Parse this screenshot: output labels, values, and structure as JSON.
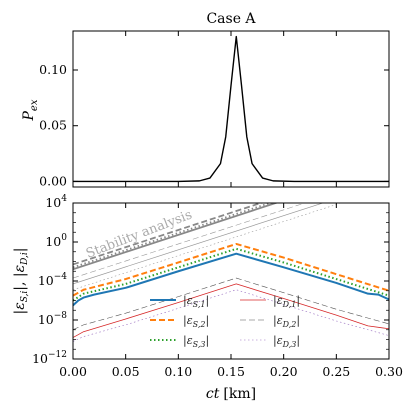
{
  "chart_data": [
    {
      "type": "line",
      "title": "Case A",
      "ylabel": "P_ex",
      "xlim": [
        0.0,
        0.3
      ],
      "ylim": [
        -0.005,
        0.135
      ],
      "yticks": [
        0.0,
        0.05,
        0.1
      ],
      "ytick_labels": [
        "0.00",
        "0.05",
        "0.10"
      ],
      "series": [
        {
          "color": "#000000",
          "x": [
            0.0,
            0.1,
            0.12,
            0.13,
            0.14,
            0.145,
            0.15,
            0.155,
            0.16,
            0.165,
            0.17,
            0.18,
            0.19,
            0.21,
            0.3
          ],
          "values": [
            0.0,
            0.0,
            0.0005,
            0.003,
            0.016,
            0.04,
            0.086,
            0.13,
            0.086,
            0.04,
            0.016,
            0.003,
            0.0005,
            0.0,
            0.0
          ]
        }
      ]
    },
    {
      "type": "line",
      "xlabel": "ct [km]",
      "xlabel_prefix": "ct",
      "xlabel_unit": "[km]",
      "ylabel": "|ε_S,i|, |ε_D,i|",
      "ylabel_left": "|",
      "ylabel_sub1": "S,i",
      "ylabel_mid": "|, |",
      "ylabel_sub2": "D,i",
      "ylabel_right": "|",
      "eps_symbol": "ε",
      "yscale": "log",
      "xlim": [
        0.0,
        0.3
      ],
      "ylim": [
        1e-12,
        10000.0
      ],
      "xticks": [
        0.0,
        0.05,
        0.1,
        0.15,
        0.2,
        0.25,
        0.3
      ],
      "xtick_labels": [
        "0.00",
        "0.05",
        "0.10",
        "0.15",
        "0.20",
        "0.25",
        "0.30"
      ],
      "ytick_exponents": [
        -12,
        -8,
        -4,
        0,
        4
      ],
      "ytick_base": "10",
      "ytick_exp_labels": [
        "−12",
        "−8",
        "−4",
        "0",
        "4"
      ],
      "annotation": "Stability analysis",
      "legend_position": "lower-center",
      "series": [
        {
          "legend": "|ε_S,1|",
          "sub": "S,1",
          "color": "#1f77b4",
          "style": "solid",
          "width": 2.0,
          "x": [
            0.0,
            0.005,
            0.01,
            0.02,
            0.05,
            0.1,
            0.155,
            0.2,
            0.25,
            0.28,
            0.29,
            0.3
          ],
          "log10": [
            -6.5,
            -6.0,
            -5.7,
            -5.4,
            -4.7,
            -3.0,
            -1.2,
            -2.6,
            -4.2,
            -5.3,
            -5.4,
            -5.9
          ]
        },
        {
          "legend": "|ε_S,2|",
          "sub": "S,2",
          "color": "#ff7f0e",
          "style": "dashed",
          "width": 2.0,
          "x": [
            0.0,
            0.01,
            0.05,
            0.1,
            0.155,
            0.2,
            0.25,
            0.3
          ],
          "log10": [
            -5.5,
            -4.9,
            -3.8,
            -2.1,
            -0.2,
            -1.6,
            -3.3,
            -5.0
          ]
        },
        {
          "legend": "|ε_S,3|",
          "sub": "S,3",
          "color": "#2ca02c",
          "style": "dotted",
          "width": 2.0,
          "x": [
            0.0,
            0.01,
            0.05,
            0.1,
            0.155,
            0.2,
            0.25,
            0.3
          ],
          "log10": [
            -6.0,
            -5.3,
            -4.3,
            -2.6,
            -0.7,
            -2.1,
            -3.8,
            -5.5
          ]
        },
        {
          "legend": "|ε_D,1|",
          "sub": "D,1",
          "color": "#d62728",
          "style": "solid",
          "width": 0.8,
          "x": [
            0.0,
            0.01,
            0.05,
            0.1,
            0.155,
            0.2,
            0.25,
            0.28,
            0.3
          ],
          "log10": [
            -9.8,
            -9.2,
            -7.9,
            -6.2,
            -4.3,
            -5.8,
            -7.5,
            -8.6,
            -8.9
          ]
        },
        {
          "legend": "|ε_D,2|",
          "sub": "D,2",
          "color": "#555555",
          "style": "dashed",
          "width": 0.6,
          "x": [
            0.0,
            0.01,
            0.05,
            0.1,
            0.155,
            0.2,
            0.25,
            0.3
          ],
          "log10": [
            -9.0,
            -8.5,
            -7.3,
            -5.6,
            -3.7,
            -5.2,
            -6.9,
            -8.4
          ]
        },
        {
          "legend": "|ε_D,3|",
          "sub": "D,3",
          "color": "#9467bd",
          "style": "dotted",
          "width": 0.6,
          "x": [
            0.0,
            0.01,
            0.05,
            0.1,
            0.155,
            0.2,
            0.25,
            0.3
          ],
          "log10": [
            -10.2,
            -9.7,
            -8.5,
            -6.8,
            -4.9,
            -6.4,
            -8.1,
            -9.6
          ]
        }
      ],
      "stability_lines": [
        {
          "color": "#888888",
          "style": "solid",
          "width": 1.8,
          "x": [
            0.0,
            0.3
          ],
          "log10": [
            -2.8,
            7.8
          ]
        },
        {
          "color": "#888888",
          "style": "dashed",
          "width": 1.8,
          "x": [
            0.0,
            0.3
          ],
          "log10": [
            -2.3,
            8.3
          ]
        },
        {
          "color": "#888888",
          "style": "dotted",
          "width": 1.8,
          "x": [
            0.0,
            0.3
          ],
          "log10": [
            -2.6,
            8.0
          ]
        },
        {
          "color": "#999999",
          "style": "solid",
          "width": 0.7,
          "x": [
            0.0,
            0.3
          ],
          "log10": [
            -4.3,
            6.2
          ]
        },
        {
          "color": "#999999",
          "style": "dashed",
          "width": 0.6,
          "x": [
            0.0,
            0.3
          ],
          "log10": [
            -3.7,
            6.8
          ]
        },
        {
          "color": "#999999",
          "style": "dotted",
          "width": 0.6,
          "x": [
            0.0,
            0.3
          ],
          "log10": [
            -4.9,
            5.6
          ]
        }
      ]
    }
  ]
}
